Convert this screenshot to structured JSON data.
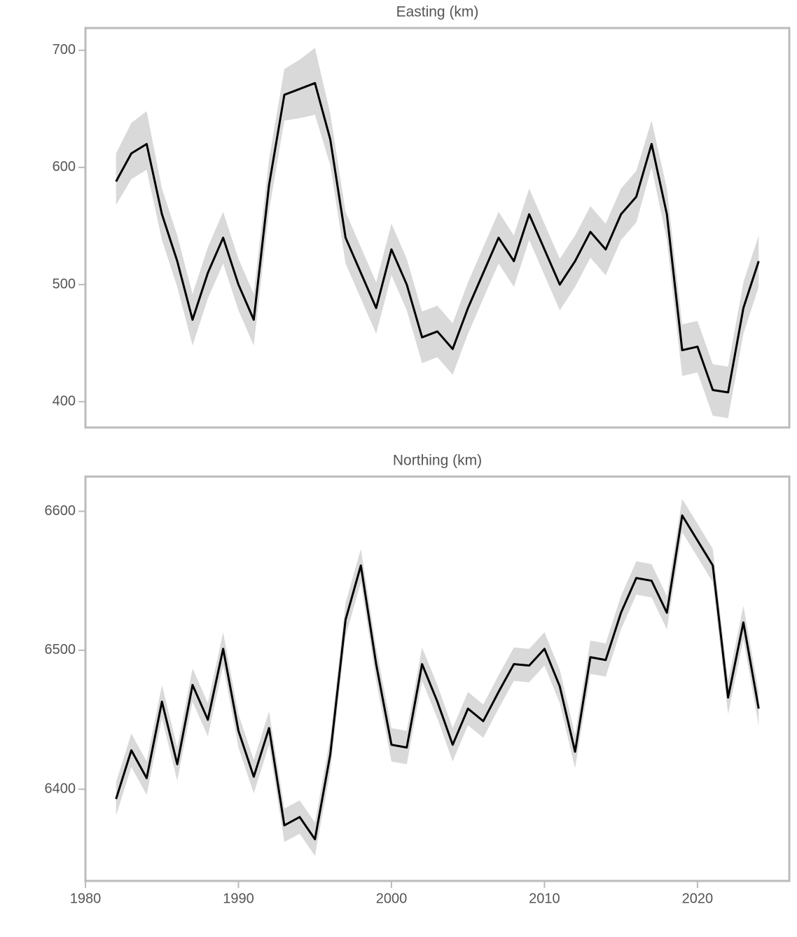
{
  "chart_data": [
    {
      "type": "line",
      "title": "Easting (km)",
      "x": [
        1982,
        1983,
        1984,
        1985,
        1986,
        1987,
        1988,
        1989,
        1990,
        1991,
        1992,
        1993,
        1994,
        1995,
        1996,
        1997,
        1998,
        1999,
        2000,
        2001,
        2002,
        2003,
        2004,
        2005,
        2006,
        2007,
        2008,
        2009,
        2010,
        2011,
        2012,
        2013,
        2014,
        2015,
        2016,
        2017,
        2018,
        2019,
        2020,
        2021,
        2022,
        2023,
        2024
      ],
      "values": [
        588,
        612,
        620,
        560,
        520,
        470,
        510,
        540,
        500,
        470,
        585,
        662,
        667,
        672,
        624,
        540,
        510,
        480,
        530,
        500,
        455,
        460,
        445,
        480,
        510,
        540,
        520,
        560,
        530,
        500,
        520,
        545,
        530,
        560,
        575,
        620,
        560,
        444,
        447,
        410,
        408,
        480,
        520
      ],
      "lower": [
        568,
        590,
        598,
        538,
        498,
        448,
        488,
        518,
        478,
        448,
        563,
        640,
        642,
        645,
        602,
        518,
        488,
        458,
        508,
        478,
        433,
        438,
        423,
        458,
        488,
        518,
        498,
        538,
        508,
        478,
        498,
        523,
        508,
        538,
        553,
        600,
        538,
        422,
        425,
        388,
        386,
        458,
        498
      ],
      "upper": [
        612,
        638,
        648,
        582,
        542,
        492,
        532,
        562,
        522,
        492,
        607,
        684,
        692,
        702,
        646,
        562,
        532,
        502,
        552,
        522,
        477,
        482,
        467,
        502,
        532,
        562,
        542,
        582,
        552,
        522,
        542,
        567,
        552,
        582,
        597,
        640,
        582,
        466,
        469,
        432,
        430,
        502,
        542
      ],
      "color": "#000000",
      "band_color": "#d9d9d9",
      "xlim": [
        1980,
        2026
      ],
      "ylim": [
        378,
        719
      ],
      "yticks": [
        400,
        500,
        600,
        700
      ]
    },
    {
      "type": "line",
      "title": "Northing (km)",
      "x": [
        1982,
        1983,
        1984,
        1985,
        1986,
        1987,
        1988,
        1989,
        1990,
        1991,
        1992,
        1993,
        1994,
        1995,
        1996,
        1997,
        1998,
        1999,
        2000,
        2001,
        2002,
        2003,
        2004,
        2005,
        2006,
        2007,
        2008,
        2009,
        2010,
        2011,
        2012,
        2013,
        2014,
        2015,
        2016,
        2017,
        2018,
        2019,
        2020,
        2021,
        2022,
        2023,
        2024
      ],
      "values": [
        6393,
        6428,
        6408,
        6463,
        6418,
        6475,
        6450,
        6501,
        6442,
        6409,
        6444,
        6374,
        6380,
        6364,
        6425,
        6522,
        6561,
        6490,
        6432,
        6430,
        6490,
        6463,
        6432,
        6458,
        6449,
        6470,
        6490,
        6489,
        6501,
        6474,
        6427,
        6495,
        6493,
        6527,
        6552,
        6550,
        6527,
        6597,
        6579,
        6561,
        6466,
        6520,
        6458
      ],
      "lower": [
        6381,
        6416,
        6396,
        6451,
        6406,
        6463,
        6438,
        6489,
        6430,
        6397,
        6432,
        6362,
        6368,
        6352,
        6413,
        6510,
        6549,
        6478,
        6420,
        6418,
        6478,
        6451,
        6420,
        6446,
        6437,
        6458,
        6478,
        6477,
        6489,
        6462,
        6415,
        6483,
        6481,
        6515,
        6540,
        6538,
        6515,
        6585,
        6567,
        6549,
        6454,
        6508,
        6446
      ],
      "upper": [
        6405,
        6440,
        6420,
        6475,
        6430,
        6487,
        6462,
        6513,
        6454,
        6421,
        6456,
        6386,
        6392,
        6376,
        6437,
        6534,
        6573,
        6502,
        6444,
        6442,
        6502,
        6475,
        6444,
        6470,
        6461,
        6482,
        6502,
        6501,
        6513,
        6486,
        6439,
        6507,
        6505,
        6539,
        6564,
        6562,
        6539,
        6609,
        6591,
        6573,
        6478,
        6532,
        6470
      ],
      "color": "#000000",
      "band_color": "#d9d9d9",
      "xlim": [
        1980,
        2026
      ],
      "ylim": [
        6334,
        6625
      ],
      "yticks": [
        6400,
        6500,
        6600
      ],
      "xticks": [
        1980,
        1990,
        2000,
        2010,
        2020
      ]
    }
  ]
}
